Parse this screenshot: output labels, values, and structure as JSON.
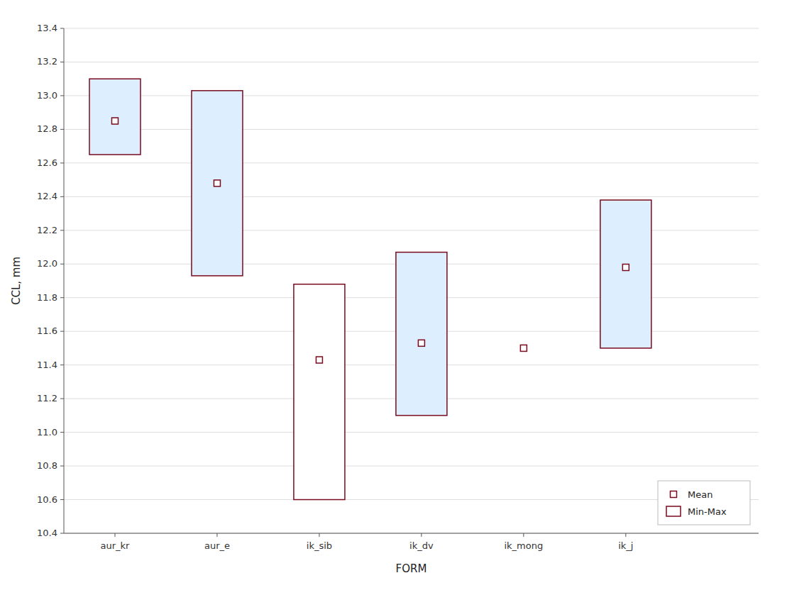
{
  "chart_data": {
    "type": "box",
    "xlabel": "FORM",
    "ylabel": "CCL, mm",
    "categories": [
      "aur_kr",
      "aur_e",
      "ik_sib",
      "ik_dv",
      "ik_mong",
      "ik_j"
    ],
    "series": [
      {
        "name": "Mean",
        "type": "scatter",
        "marker": "square",
        "color": "#7a0a1e",
        "values": [
          12.85,
          12.48,
          11.43,
          11.53,
          11.5,
          11.98
        ]
      },
      {
        "name": "Min-Max",
        "type": "range",
        "color": "#7a0a1e",
        "colors": [
          "#ddeeff",
          "#ddeeff",
          "#ffffff",
          "#ddeeff",
          "#ddeeff",
          "#ddeeff"
        ],
        "low": [
          12.65,
          11.93,
          10.6,
          11.1,
          11.5,
          11.5
        ],
        "high": [
          13.1,
          13.03,
          11.88,
          12.07,
          11.5,
          12.38
        ]
      }
    ],
    "ylim": [
      10.4,
      13.4
    ],
    "yticks": [
      10.4,
      10.6,
      10.8,
      {
        "value": 11,
        "label": "11.0"
      },
      11.2,
      11.4,
      11.6,
      11.8,
      {
        "value": 12,
        "label": "12.0"
      },
      12.2,
      12.4,
      12.6,
      12.8,
      {
        "value": 13,
        "label": "13.0"
      },
      13.2,
      13.4
    ],
    "grid": true,
    "legend": "lower right"
  }
}
